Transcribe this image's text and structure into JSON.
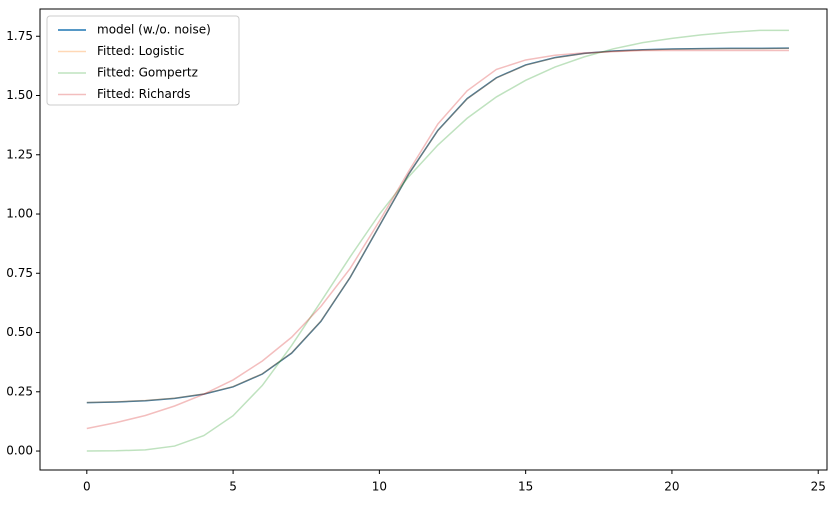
{
  "chart_data": {
    "type": "line",
    "x": [
      0,
      1,
      2,
      3,
      4,
      5,
      6,
      7,
      8,
      9,
      10,
      11,
      12,
      13,
      14,
      15,
      16,
      17,
      18,
      19,
      20,
      21,
      22,
      23,
      24
    ],
    "series": [
      {
        "name": "model (w./o. noise)",
        "color": "#1f77b4",
        "values": [
          0.204,
          0.207,
          0.212,
          0.222,
          0.24,
          0.271,
          0.325,
          0.413,
          0.547,
          0.732,
          0.95,
          1.168,
          1.353,
          1.487,
          1.575,
          1.629,
          1.66,
          1.678,
          1.688,
          1.693,
          1.696,
          1.698,
          1.699,
          1.699,
          1.7
        ]
      },
      {
        "name": "Fitted: Logistic",
        "color": "#ff7f0e4d",
        "values": [
          0.205,
          0.208,
          0.213,
          0.223,
          0.241,
          0.272,
          0.326,
          0.414,
          0.548,
          0.733,
          0.951,
          1.168,
          1.352,
          1.486,
          1.574,
          1.628,
          1.659,
          1.677,
          1.687,
          1.692,
          1.695,
          1.697,
          1.698,
          1.698,
          1.699
        ]
      },
      {
        "name": "Fitted: Gompertz",
        "color": "#2ca02c4d",
        "values": [
          0.0,
          0.001,
          0.005,
          0.021,
          0.065,
          0.149,
          0.277,
          0.445,
          0.63,
          0.819,
          0.999,
          1.157,
          1.291,
          1.404,
          1.494,
          1.564,
          1.62,
          1.663,
          1.697,
          1.723,
          1.741,
          1.756,
          1.767,
          1.775,
          1.775
        ]
      },
      {
        "name": "Fitted: Richards",
        "color": "#d627284d",
        "values": [
          0.095,
          0.12,
          0.15,
          0.19,
          0.24,
          0.3,
          0.38,
          0.48,
          0.61,
          0.77,
          0.97,
          1.18,
          1.38,
          1.52,
          1.61,
          1.65,
          1.67,
          1.68,
          1.685,
          1.69,
          1.69,
          1.69,
          1.69,
          1.69,
          1.69
        ]
      }
    ],
    "xlim": [
      -1.6,
      25.3
    ],
    "ylim": [
      -0.08,
      1.865
    ],
    "xticks": [
      0,
      5,
      10,
      15,
      20,
      25
    ],
    "yticks": [
      {
        "value": 0,
        "label": "0.00"
      },
      {
        "value": 0.25,
        "label": "0.25"
      },
      {
        "value": 0.5,
        "label": "0.50"
      },
      {
        "value": 0.75,
        "label": "0.75"
      },
      {
        "value": 1,
        "label": "1.00"
      },
      {
        "value": 1.25,
        "label": "1.25"
      },
      {
        "value": 1.5,
        "label": "1.50"
      },
      {
        "value": 1.75,
        "label": "1.75"
      }
    ],
    "legend": "upper left",
    "grid": false
  }
}
